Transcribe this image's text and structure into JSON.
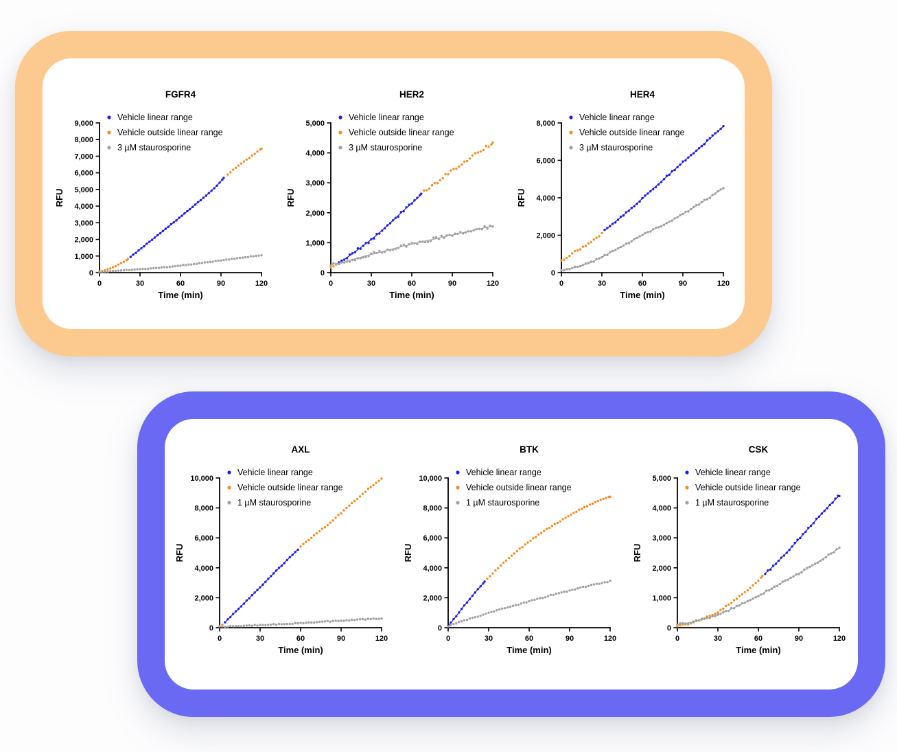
{
  "page": {
    "background": "#fdfdfe"
  },
  "colors": {
    "vehicle_linear": "#1d1df0",
    "vehicle_outside": "#f78c1c",
    "staurosporine": "#a0a0a0",
    "axis": "#000000",
    "panel_top_border": "#fcc98e",
    "panel_bottom_border": "#6969f3",
    "panel_fill": "#ffffff"
  },
  "panels": [
    {
      "id": "top",
      "border_color_key": "panel_top_border",
      "chart_titles": [
        "FGFR4",
        "HER2",
        "HER4"
      ]
    },
    {
      "id": "bottom",
      "border_color_key": "panel_bottom_border",
      "chart_titles": [
        "AXL",
        "BTK",
        "CSK"
      ]
    }
  ],
  "chart_data": [
    {
      "type": "scatter",
      "panel": "top",
      "title": "FGFR4",
      "xlabel": "Time (min)",
      "ylabel": "RFU",
      "xlim": [
        0,
        120
      ],
      "xtick_step": 30,
      "ylim": [
        0,
        9000
      ],
      "ytick_step": 1000,
      "grid": false,
      "legend_position": "top-left",
      "sample_step_min": 2,
      "legend": [
        {
          "label": "Vehicle linear range",
          "color": "vehicle_linear"
        },
        {
          "label": "Vehicle outside linear range",
          "color": "vehicle_outside"
        },
        {
          "label": "3 µM staurosporine",
          "color": "staurosporine"
        }
      ],
      "series": [
        {
          "name": "vehicle-outside-early",
          "color": "vehicle_outside",
          "noise": 12,
          "anchors": [
            [
              0,
              60
            ],
            [
              3,
              110
            ],
            [
              6,
              190
            ],
            [
              9,
              290
            ],
            [
              12,
              400
            ],
            [
              15,
              530
            ],
            [
              18,
              660
            ],
            [
              21,
              820
            ]
          ]
        },
        {
          "name": "vehicle-linear",
          "color": "vehicle_linear",
          "trend": true,
          "noise": 18,
          "anchors": [
            [
              23,
              950
            ],
            [
              30,
              1400
            ],
            [
              40,
              2050
            ],
            [
              50,
              2700
            ],
            [
              60,
              3350
            ],
            [
              70,
              4020
            ],
            [
              80,
              4700
            ],
            [
              86,
              5150
            ],
            [
              92,
              5680
            ]
          ]
        },
        {
          "name": "vehicle-outside-late",
          "color": "vehicle_outside",
          "noise": 16,
          "anchors": [
            [
              95,
              5900
            ],
            [
              100,
              6250
            ],
            [
              105,
              6550
            ],
            [
              110,
              6850
            ],
            [
              115,
              7150
            ],
            [
              120,
              7450
            ]
          ]
        },
        {
          "name": "staurosporine",
          "color": "staurosporine",
          "noise": 16,
          "anchors": [
            [
              0,
              40
            ],
            [
              10,
              95
            ],
            [
              20,
              150
            ],
            [
              30,
              200
            ],
            [
              40,
              260
            ],
            [
              50,
              340
            ],
            [
              60,
              430
            ],
            [
              70,
              520
            ],
            [
              80,
              625
            ],
            [
              90,
              735
            ],
            [
              100,
              845
            ],
            [
              110,
              950
            ],
            [
              120,
              1050
            ]
          ]
        }
      ]
    },
    {
      "type": "scatter",
      "panel": "top",
      "title": "HER2",
      "xlabel": "Time (min)",
      "ylabel": "RFU",
      "xlim": [
        0,
        120
      ],
      "xtick_step": 30,
      "ylim": [
        0,
        5000
      ],
      "ytick_step": 1000,
      "grid": false,
      "legend_position": "top-left",
      "sample_step_min": 2,
      "legend": [
        {
          "label": "Vehicle linear range",
          "color": "vehicle_linear"
        },
        {
          "label": "Vehicle outside linear range",
          "color": "vehicle_outside"
        },
        {
          "label": "3 µM staurosporine",
          "color": "staurosporine"
        }
      ],
      "series": [
        {
          "name": "vehicle-outside-early",
          "color": "vehicle_outside",
          "noise": 18,
          "anchors": [
            [
              0,
              170
            ],
            [
              2,
              215
            ],
            [
              4,
              265
            ]
          ]
        },
        {
          "name": "vehicle-linear",
          "color": "vehicle_linear",
          "trend": true,
          "noise": 50,
          "anchors": [
            [
              6,
              320
            ],
            [
              15,
              600
            ],
            [
              25,
              930
            ],
            [
              35,
              1290
            ],
            [
              45,
              1700
            ],
            [
              55,
              2120
            ],
            [
              67,
              2600
            ]
          ]
        },
        {
          "name": "vehicle-outside-late",
          "color": "vehicle_outside",
          "noise": 45,
          "anchors": [
            [
              69,
              2700
            ],
            [
              75,
              2900
            ],
            [
              80,
              3060
            ],
            [
              85,
              3250
            ],
            [
              90,
              3420
            ],
            [
              95,
              3560
            ],
            [
              100,
              3700
            ],
            [
              105,
              3880
            ],
            [
              110,
              4060
            ],
            [
              115,
              4180
            ],
            [
              120,
              4300
            ]
          ]
        },
        {
          "name": "staurosporine",
          "color": "staurosporine",
          "trend": true,
          "noise": 55,
          "anchors": [
            [
              0,
              260
            ],
            [
              10,
              360
            ],
            [
              20,
              490
            ],
            [
              30,
              610
            ],
            [
              40,
              720
            ],
            [
              50,
              845
            ],
            [
              60,
              950
            ],
            [
              70,
              1060
            ],
            [
              80,
              1155
            ],
            [
              90,
              1260
            ],
            [
              100,
              1355
            ],
            [
              110,
              1460
            ],
            [
              120,
              1560
            ]
          ]
        }
      ]
    },
    {
      "type": "scatter",
      "panel": "top",
      "title": "HER4",
      "xlabel": "Time (min)",
      "ylabel": "RFU",
      "xlim": [
        0,
        120
      ],
      "xtick_step": 30,
      "ylim": [
        0,
        8000
      ],
      "ytick_step": 2000,
      "grid": false,
      "legend_position": "top-left",
      "sample_step_min": 2,
      "legend": [
        {
          "label": "Vehicle linear range",
          "color": "vehicle_linear"
        },
        {
          "label": "Vehicle outside linear range",
          "color": "vehicle_outside"
        },
        {
          "label": "3 µM staurosporine",
          "color": "staurosporine"
        }
      ],
      "series": [
        {
          "name": "vehicle-outside-early",
          "color": "vehicle_outside",
          "noise": 40,
          "anchors": [
            [
              0,
              620
            ],
            [
              5,
              850
            ],
            [
              10,
              1120
            ],
            [
              15,
              1320
            ],
            [
              20,
              1540
            ],
            [
              25,
              1800
            ],
            [
              30,
              2080
            ]
          ]
        },
        {
          "name": "vehicle-linear",
          "color": "vehicle_linear",
          "trend": true,
          "noise": 45,
          "anchors": [
            [
              32,
              2250
            ],
            [
              40,
              2720
            ],
            [
              50,
              3320
            ],
            [
              60,
              3960
            ],
            [
              70,
              4610
            ],
            [
              80,
              5260
            ],
            [
              90,
              5900
            ],
            [
              100,
              6520
            ],
            [
              110,
              7160
            ],
            [
              120,
              7820
            ]
          ]
        },
        {
          "name": "staurosporine",
          "color": "staurosporine",
          "trend": true,
          "noise": 40,
          "anchors": [
            [
              0,
              110
            ],
            [
              10,
              280
            ],
            [
              20,
              490
            ],
            [
              30,
              820
            ],
            [
              40,
              1230
            ],
            [
              50,
              1610
            ],
            [
              60,
              2010
            ],
            [
              70,
              2360
            ],
            [
              80,
              2720
            ],
            [
              90,
              3130
            ],
            [
              100,
              3570
            ],
            [
              110,
              4030
            ],
            [
              120,
              4520
            ]
          ]
        }
      ]
    },
    {
      "type": "scatter",
      "panel": "bottom",
      "title": "AXL",
      "xlabel": "Time (min)",
      "ylabel": "RFU",
      "xlim": [
        0,
        120
      ],
      "xtick_step": 30,
      "ylim": [
        0,
        10000
      ],
      "ytick_step": 2000,
      "grid": false,
      "legend_position": "top-left",
      "sample_step_min": 2,
      "legend": [
        {
          "label": "Vehicle linear range",
          "color": "vehicle_linear"
        },
        {
          "label": "Vehicle outside linear range",
          "color": "vehicle_outside"
        },
        {
          "label": "1 µM staurosporine",
          "color": "staurosporine"
        }
      ],
      "series": [
        {
          "name": "vehicle-outside-early",
          "color": "vehicle_outside",
          "noise": 10,
          "anchors": [
            [
              0,
              100
            ],
            [
              2,
              210
            ]
          ]
        },
        {
          "name": "vehicle-linear",
          "color": "vehicle_linear",
          "trend": true,
          "noise": 22,
          "anchors": [
            [
              4,
              360
            ],
            [
              10,
              900
            ],
            [
              20,
              1800
            ],
            [
              30,
              2700
            ],
            [
              40,
              3620
            ],
            [
              50,
              4520
            ],
            [
              58,
              5220
            ]
          ]
        },
        {
          "name": "vehicle-outside-late",
          "color": "vehicle_outside",
          "noise": 25,
          "anchors": [
            [
              60,
              5420
            ],
            [
              70,
              6160
            ],
            [
              80,
              6870
            ],
            [
              90,
              7660
            ],
            [
              100,
              8460
            ],
            [
              110,
              9260
            ],
            [
              120,
              9950
            ]
          ]
        },
        {
          "name": "staurosporine",
          "color": "staurosporine",
          "noise": 28,
          "anchors": [
            [
              0,
              60
            ],
            [
              20,
              130
            ],
            [
              40,
              215
            ],
            [
              60,
              305
            ],
            [
              80,
              415
            ],
            [
              100,
              515
            ],
            [
              120,
              625
            ]
          ]
        }
      ]
    },
    {
      "type": "scatter",
      "panel": "bottom",
      "title": "BTK",
      "xlabel": "Time (min)",
      "ylabel": "RFU",
      "xlim": [
        0,
        120
      ],
      "xtick_step": 30,
      "ylim": [
        0,
        10000
      ],
      "ytick_step": 2000,
      "grid": false,
      "legend_position": "top-left",
      "sample_step_min": 2,
      "legend": [
        {
          "label": "Vehicle linear range",
          "color": "vehicle_linear"
        },
        {
          "label": "Vehicle outside linear range",
          "color": "vehicle_outside"
        },
        {
          "label": "1 µM staurosporine",
          "color": "staurosporine"
        }
      ],
      "series": [
        {
          "name": "vehicle-linear",
          "color": "vehicle_linear",
          "trend": true,
          "noise": 25,
          "anchors": [
            [
              0,
              120
            ],
            [
              5,
              660
            ],
            [
              10,
              1260
            ],
            [
              15,
              1810
            ],
            [
              20,
              2360
            ],
            [
              27,
              3060
            ]
          ]
        },
        {
          "name": "vehicle-outside-late",
          "color": "vehicle_outside",
          "noise": 30,
          "anchors": [
            [
              29,
              3260
            ],
            [
              40,
              4260
            ],
            [
              50,
              5060
            ],
            [
              60,
              5760
            ],
            [
              70,
              6400
            ],
            [
              80,
              6960
            ],
            [
              90,
              7510
            ],
            [
              100,
              8010
            ],
            [
              110,
              8410
            ],
            [
              120,
              8760
            ]
          ]
        },
        {
          "name": "staurosporine",
          "color": "staurosporine",
          "noise": 32,
          "anchors": [
            [
              0,
              120
            ],
            [
              20,
              710
            ],
            [
              40,
              1260
            ],
            [
              60,
              1760
            ],
            [
              80,
              2260
            ],
            [
              100,
              2710
            ],
            [
              120,
              3110
            ]
          ]
        }
      ]
    },
    {
      "type": "scatter",
      "panel": "bottom",
      "title": "CSK",
      "xlabel": "Time (min)",
      "ylabel": "RFU",
      "xlim": [
        0,
        120
      ],
      "xtick_step": 30,
      "ylim": [
        0,
        5000
      ],
      "ytick_step": 1000,
      "grid": false,
      "legend_position": "top-left",
      "sample_step_min": 2,
      "legend": [
        {
          "label": "Vehicle linear range",
          "color": "vehicle_linear"
        },
        {
          "label": "Vehicle outside linear range",
          "color": "vehicle_outside"
        },
        {
          "label": "1 µM staurosporine",
          "color": "staurosporine"
        }
      ],
      "series": [
        {
          "name": "vehicle-outside-early",
          "color": "vehicle_outside",
          "noise": 22,
          "anchors": [
            [
              0,
              60
            ],
            [
              10,
              135
            ],
            [
              20,
              305
            ],
            [
              30,
              525
            ],
            [
              40,
              830
            ],
            [
              50,
              1180
            ],
            [
              57,
              1450
            ],
            [
              63,
              1710
            ]
          ]
        },
        {
          "name": "vehicle-linear",
          "color": "vehicle_linear",
          "trend": true,
          "noise": 32,
          "anchors": [
            [
              65,
              1810
            ],
            [
              70,
              2010
            ],
            [
              80,
              2460
            ],
            [
              90,
              2960
            ],
            [
              100,
              3460
            ],
            [
              110,
              3960
            ],
            [
              120,
              4420
            ]
          ]
        },
        {
          "name": "staurosporine",
          "color": "staurosporine",
          "trend": true,
          "noise": 28,
          "anchors": [
            [
              0,
              110
            ],
            [
              10,
              175
            ],
            [
              20,
              295
            ],
            [
              30,
              425
            ],
            [
              40,
              625
            ],
            [
              50,
              835
            ],
            [
              60,
              1065
            ],
            [
              70,
              1315
            ],
            [
              80,
              1565
            ],
            [
              90,
              1815
            ],
            [
              100,
              2075
            ],
            [
              110,
              2365
            ],
            [
              120,
              2660
            ]
          ]
        }
      ]
    }
  ]
}
